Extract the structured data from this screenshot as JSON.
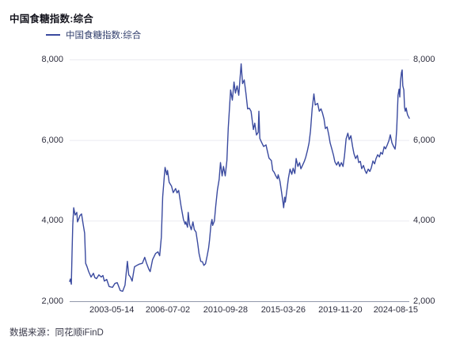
{
  "header": {
    "title": "中国食糖指数:综合"
  },
  "legend": {
    "label": "中国食糖指数:综合"
  },
  "footer": {
    "source": "数据来源：同花顺iFinD"
  },
  "colors": {
    "line": "#3a4a9f",
    "grid": "#ebebf0",
    "axis_line": "#9298ab",
    "tick_text": "#2e2e3e",
    "title_text": "#16161f",
    "legend_text": "#33406e",
    "footer_text": "#3a3a4a"
  },
  "chart_data": {
    "type": "line",
    "title": "中国食糖指数:综合",
    "xlabel": "",
    "ylabel": "",
    "ylim": [
      2000,
      8000
    ],
    "y_ticks": [
      2000,
      4000,
      6000,
      8000
    ],
    "y_axis_sides": [
      "left",
      "right"
    ],
    "grid": "horizontal",
    "legend_position": "top-left",
    "x_ticks": [
      {
        "label": "2003-05-14",
        "pos": 0.124
      },
      {
        "label": "2006-07-02",
        "pos": 0.289
      },
      {
        "label": "2010-09-28",
        "pos": 0.459
      },
      {
        "label": "2015-03-26",
        "pos": 0.629
      },
      {
        "label": "2019-11-20",
        "pos": 0.797
      },
      {
        "label": "2024-08-15",
        "pos": 0.96
      }
    ],
    "series": [
      {
        "name": "中国食糖指数:综合",
        "x_unit": "fraction_of_axis",
        "points": [
          [
            0.0,
            2500
          ],
          [
            0.002,
            2560
          ],
          [
            0.005,
            2430
          ],
          [
            0.007,
            3200
          ],
          [
            0.009,
            3900
          ],
          [
            0.012,
            4330
          ],
          [
            0.016,
            4150
          ],
          [
            0.021,
            4215
          ],
          [
            0.023,
            3980
          ],
          [
            0.028,
            4080
          ],
          [
            0.03,
            4135
          ],
          [
            0.035,
            4175
          ],
          [
            0.04,
            3900
          ],
          [
            0.044,
            3700
          ],
          [
            0.047,
            2950
          ],
          [
            0.051,
            2870
          ],
          [
            0.056,
            2745
          ],
          [
            0.063,
            2610
          ],
          [
            0.07,
            2705
          ],
          [
            0.074,
            2600
          ],
          [
            0.079,
            2570
          ],
          [
            0.086,
            2665
          ],
          [
            0.093,
            2610
          ],
          [
            0.098,
            2650
          ],
          [
            0.102,
            2510
          ],
          [
            0.109,
            2550
          ],
          [
            0.116,
            2375
          ],
          [
            0.126,
            2355
          ],
          [
            0.133,
            2450
          ],
          [
            0.14,
            2470
          ],
          [
            0.149,
            2275
          ],
          [
            0.156,
            2255
          ],
          [
            0.163,
            2410
          ],
          [
            0.17,
            3000
          ],
          [
            0.174,
            2665
          ],
          [
            0.179,
            2610
          ],
          [
            0.184,
            2510
          ],
          [
            0.191,
            2865
          ],
          [
            0.198,
            2900
          ],
          [
            0.205,
            2930
          ],
          [
            0.214,
            2950
          ],
          [
            0.221,
            3100
          ],
          [
            0.226,
            2960
          ],
          [
            0.233,
            2805
          ],
          [
            0.237,
            2745
          ],
          [
            0.244,
            3040
          ],
          [
            0.253,
            3195
          ],
          [
            0.26,
            3235
          ],
          [
            0.265,
            3140
          ],
          [
            0.27,
            3600
          ],
          [
            0.274,
            4600
          ],
          [
            0.279,
            5150
          ],
          [
            0.281,
            5330
          ],
          [
            0.286,
            5150
          ],
          [
            0.288,
            5255
          ],
          [
            0.293,
            4960
          ],
          [
            0.3,
            4865
          ],
          [
            0.305,
            4705
          ],
          [
            0.312,
            4805
          ],
          [
            0.316,
            4700
          ],
          [
            0.321,
            4760
          ],
          [
            0.328,
            4370
          ],
          [
            0.335,
            4040
          ],
          [
            0.34,
            3920
          ],
          [
            0.342,
            3980
          ],
          [
            0.347,
            3845
          ],
          [
            0.349,
            4215
          ],
          [
            0.353,
            3920
          ],
          [
            0.358,
            3785
          ],
          [
            0.363,
            3980
          ],
          [
            0.367,
            3790
          ],
          [
            0.372,
            3725
          ],
          [
            0.377,
            3450
          ],
          [
            0.381,
            3195
          ],
          [
            0.386,
            3000
          ],
          [
            0.391,
            2990
          ],
          [
            0.395,
            2900
          ],
          [
            0.4,
            2940
          ],
          [
            0.405,
            3140
          ],
          [
            0.409,
            3330
          ],
          [
            0.412,
            3530
          ],
          [
            0.416,
            3920
          ],
          [
            0.419,
            4040
          ],
          [
            0.421,
            3890
          ],
          [
            0.426,
            4000
          ],
          [
            0.43,
            4370
          ],
          [
            0.435,
            4765
          ],
          [
            0.44,
            5030
          ],
          [
            0.444,
            5450
          ],
          [
            0.449,
            5120
          ],
          [
            0.453,
            5355
          ],
          [
            0.458,
            5120
          ],
          [
            0.463,
            5500
          ],
          [
            0.467,
            6300
          ],
          [
            0.472,
            7000
          ],
          [
            0.474,
            7255
          ],
          [
            0.479,
            7000
          ],
          [
            0.484,
            7450
          ],
          [
            0.488,
            7175
          ],
          [
            0.493,
            7355
          ],
          [
            0.498,
            7120
          ],
          [
            0.505,
            7900
          ],
          [
            0.509,
            7410
          ],
          [
            0.514,
            7500
          ],
          [
            0.519,
            7160
          ],
          [
            0.524,
            6785
          ],
          [
            0.529,
            6800
          ],
          [
            0.534,
            6725
          ],
          [
            0.541,
            6270
          ],
          [
            0.545,
            6430
          ],
          [
            0.55,
            6135
          ],
          [
            0.555,
            6200
          ],
          [
            0.557,
            6725
          ],
          [
            0.56,
            6050
          ],
          [
            0.564,
            5970
          ],
          [
            0.571,
            5850
          ],
          [
            0.578,
            5890
          ],
          [
            0.583,
            5705
          ],
          [
            0.587,
            5560
          ],
          [
            0.594,
            5500
          ],
          [
            0.598,
            5255
          ],
          [
            0.602,
            5210
          ],
          [
            0.607,
            5120
          ],
          [
            0.612,
            5050
          ],
          [
            0.614,
            5150
          ],
          [
            0.619,
            4990
          ],
          [
            0.623,
            4765
          ],
          [
            0.628,
            4470
          ],
          [
            0.63,
            4330
          ],
          [
            0.633,
            4590
          ],
          [
            0.635,
            4470
          ],
          [
            0.64,
            4800
          ],
          [
            0.644,
            5060
          ],
          [
            0.649,
            5290
          ],
          [
            0.654,
            5160
          ],
          [
            0.658,
            5310
          ],
          [
            0.663,
            5180
          ],
          [
            0.667,
            5550
          ],
          [
            0.672,
            5355
          ],
          [
            0.677,
            5450
          ],
          [
            0.681,
            5295
          ],
          [
            0.686,
            5390
          ],
          [
            0.691,
            5480
          ],
          [
            0.695,
            5585
          ],
          [
            0.7,
            5745
          ],
          [
            0.705,
            5940
          ],
          [
            0.709,
            6235
          ],
          [
            0.714,
            6785
          ],
          [
            0.719,
            7155
          ],
          [
            0.723,
            6880
          ],
          [
            0.73,
            6920
          ],
          [
            0.735,
            6725
          ],
          [
            0.74,
            6785
          ],
          [
            0.744,
            6690
          ],
          [
            0.749,
            6530
          ],
          [
            0.753,
            6295
          ],
          [
            0.758,
            6335
          ],
          [
            0.763,
            6140
          ],
          [
            0.767,
            5940
          ],
          [
            0.772,
            5785
          ],
          [
            0.777,
            5630
          ],
          [
            0.781,
            5470
          ],
          [
            0.786,
            5390
          ],
          [
            0.791,
            5470
          ],
          [
            0.795,
            5355
          ],
          [
            0.8,
            5450
          ],
          [
            0.805,
            5355
          ],
          [
            0.809,
            5610
          ],
          [
            0.814,
            6040
          ],
          [
            0.819,
            6180
          ],
          [
            0.823,
            6020
          ],
          [
            0.828,
            6120
          ],
          [
            0.833,
            5845
          ],
          [
            0.837,
            5670
          ],
          [
            0.842,
            5550
          ],
          [
            0.847,
            5630
          ],
          [
            0.851,
            5450
          ],
          [
            0.856,
            5480
          ],
          [
            0.86,
            5300
          ],
          [
            0.865,
            5380
          ],
          [
            0.87,
            5250
          ],
          [
            0.874,
            5180
          ],
          [
            0.879,
            5290
          ],
          [
            0.884,
            5230
          ],
          [
            0.888,
            5320
          ],
          [
            0.893,
            5490
          ],
          [
            0.898,
            5420
          ],
          [
            0.902,
            5550
          ],
          [
            0.907,
            5645
          ],
          [
            0.912,
            5590
          ],
          [
            0.916,
            5705
          ],
          [
            0.921,
            5660
          ],
          [
            0.926,
            5845
          ],
          [
            0.93,
            5790
          ],
          [
            0.935,
            5885
          ],
          [
            0.94,
            6000
          ],
          [
            0.944,
            6140
          ],
          [
            0.949,
            5940
          ],
          [
            0.953,
            5865
          ],
          [
            0.958,
            5785
          ],
          [
            0.96,
            5900
          ],
          [
            0.963,
            6275
          ],
          [
            0.965,
            6725
          ],
          [
            0.967,
            7120
          ],
          [
            0.97,
            7275
          ],
          [
            0.972,
            7080
          ],
          [
            0.974,
            7450
          ],
          [
            0.977,
            7685
          ],
          [
            0.979,
            7750
          ],
          [
            0.981,
            7355
          ],
          [
            0.984,
            7255
          ],
          [
            0.986,
            6825
          ],
          [
            0.988,
            6725
          ],
          [
            0.991,
            6805
          ],
          [
            0.993,
            6705
          ],
          [
            0.995,
            6630
          ],
          [
            1.0,
            6550
          ]
        ]
      }
    ]
  }
}
